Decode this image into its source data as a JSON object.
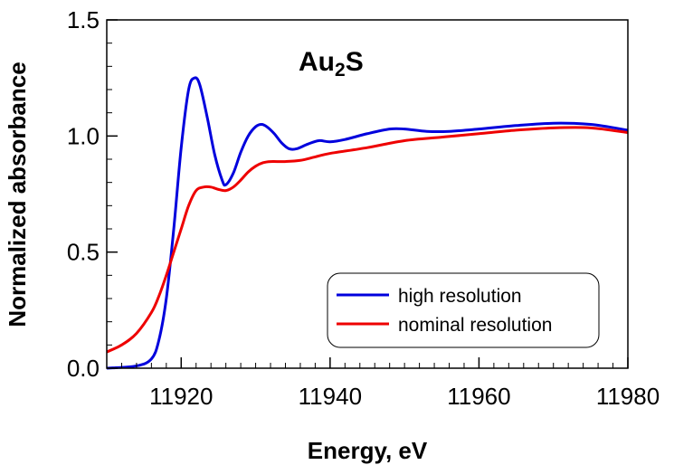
{
  "chart_data": {
    "type": "line",
    "title": "Au",
    "title_subscript": "2",
    "title_suffix": "S",
    "xlabel": "Energy, eV",
    "ylabel": "Normalized absorbance",
    "xlim": [
      11910,
      11980
    ],
    "ylim": [
      0.0,
      1.5
    ],
    "x_ticks": [
      11920,
      11940,
      11960,
      11980
    ],
    "x_tick_labels": [
      "11920",
      "11940",
      "11960",
      "11980"
    ],
    "y_ticks": [
      0.0,
      0.5,
      1.0,
      1.5
    ],
    "y_tick_labels": [
      "0.0",
      "0.5",
      "1.0",
      "1.5"
    ],
    "grid": false,
    "legend_position": "bottom-right",
    "series": [
      {
        "name": "high resolution",
        "color": "#0000dd",
        "x": [
          11910,
          11914,
          11916,
          11917,
          11918,
          11919,
          11920,
          11921,
          11921.8,
          11922.5,
          11923.5,
          11924.5,
          11925.5,
          11926,
          11927,
          11928,
          11929,
          11930,
          11930.8,
          11931.5,
          11932.5,
          11933.5,
          11934.5,
          11935.5,
          11937,
          11938.5,
          11940,
          11942,
          11945,
          11948,
          11950,
          11953,
          11956,
          11960,
          11965,
          11970,
          11975,
          11980
        ],
        "y": [
          0.0,
          0.01,
          0.04,
          0.12,
          0.3,
          0.6,
          0.95,
          1.2,
          1.25,
          1.22,
          1.08,
          0.92,
          0.81,
          0.79,
          0.84,
          0.93,
          1.0,
          1.04,
          1.05,
          1.04,
          1.01,
          0.97,
          0.945,
          0.945,
          0.965,
          0.98,
          0.975,
          0.985,
          1.01,
          1.03,
          1.03,
          1.02,
          1.02,
          1.03,
          1.045,
          1.055,
          1.05,
          1.025
        ]
      },
      {
        "name": "nominal resolution",
        "color": "#ee0000",
        "x": [
          11910,
          11912,
          11914,
          11916,
          11917,
          11918,
          11919,
          11920,
          11921,
          11922,
          11923,
          11924,
          11925,
          11926,
          11927,
          11928,
          11929,
          11930,
          11931,
          11932,
          11934,
          11936,
          11938,
          11940,
          11945,
          11950,
          11955,
          11960,
          11965,
          11970,
          11975,
          11980
        ],
        "y": [
          0.07,
          0.1,
          0.15,
          0.24,
          0.31,
          0.4,
          0.5,
          0.6,
          0.7,
          0.765,
          0.78,
          0.78,
          0.77,
          0.765,
          0.78,
          0.81,
          0.845,
          0.87,
          0.885,
          0.89,
          0.89,
          0.895,
          0.91,
          0.925,
          0.95,
          0.98,
          0.995,
          1.01,
          1.025,
          1.035,
          1.035,
          1.015
        ]
      }
    ]
  }
}
